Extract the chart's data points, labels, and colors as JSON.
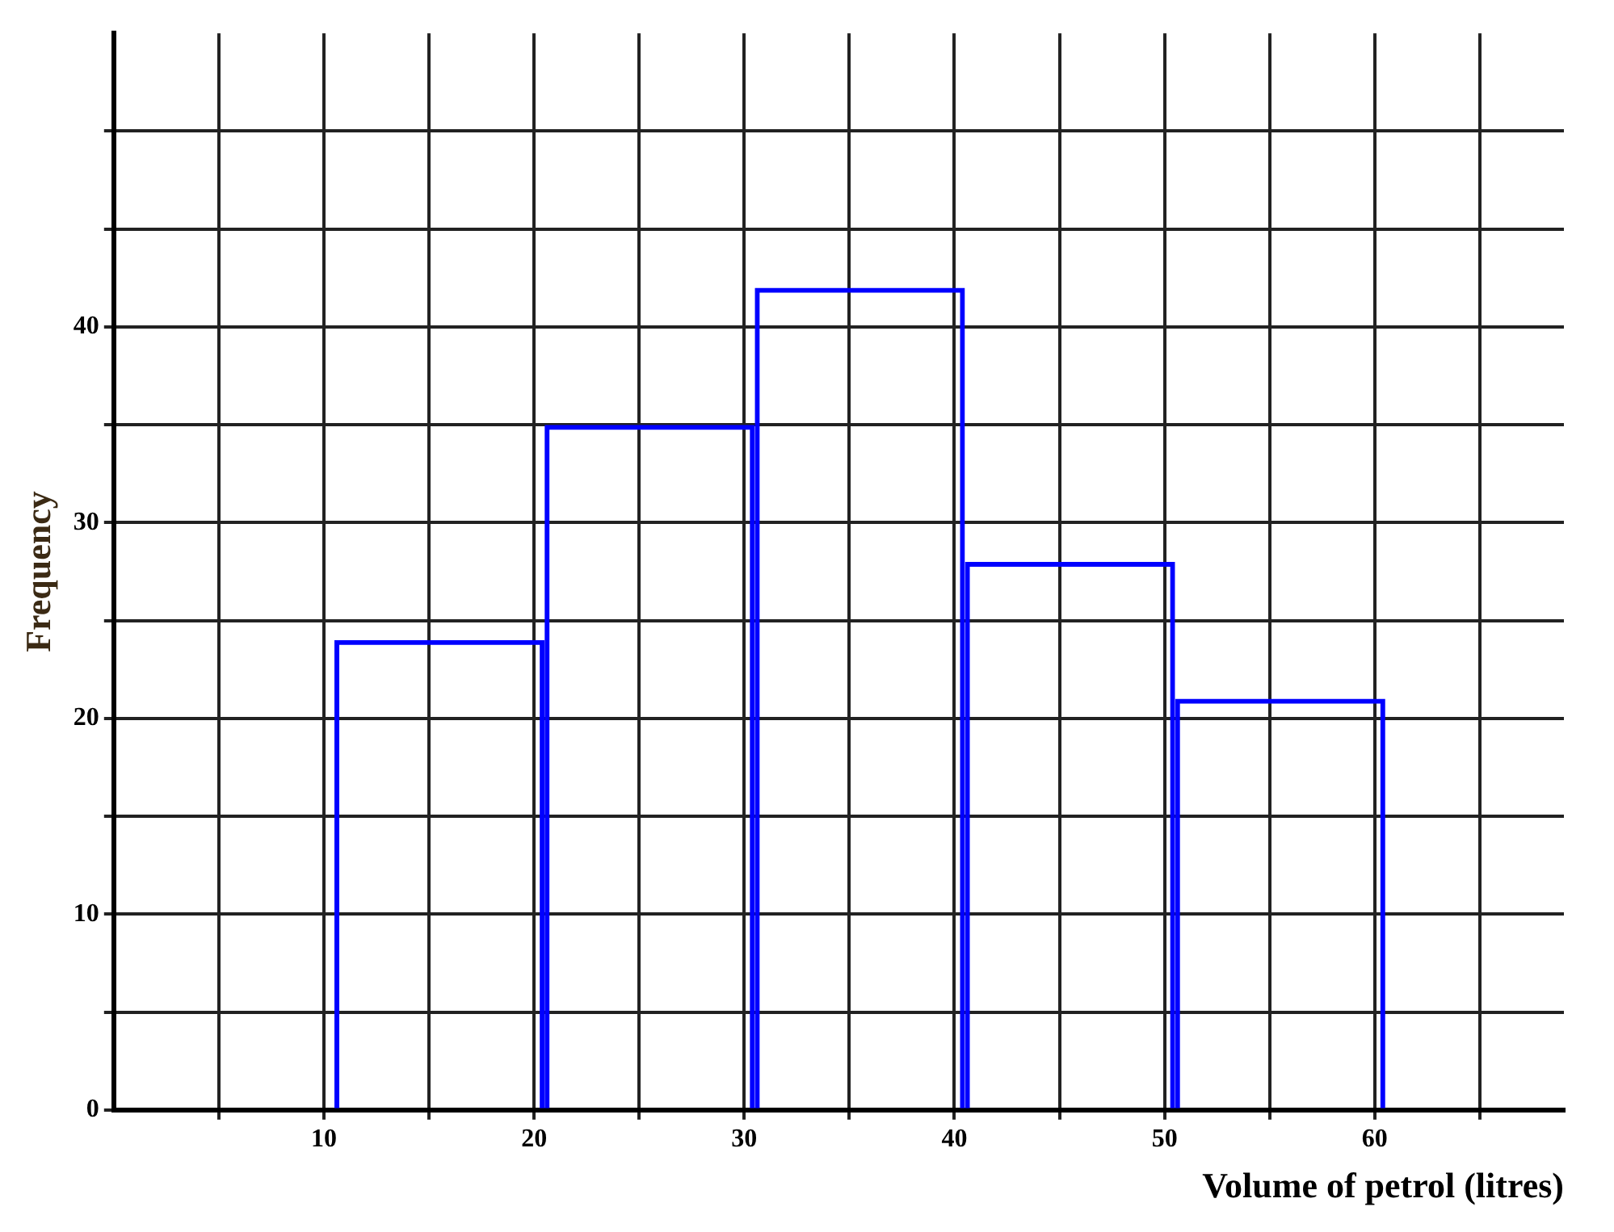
{
  "chart_data": {
    "type": "histogram",
    "xlabel": "Volume of petrol (litres)",
    "ylabel": "Frequency",
    "bins": [
      10.5,
      20.5,
      30.5,
      40.5,
      50.5,
      60.5
    ],
    "values": [
      24,
      35,
      42,
      28,
      21
    ],
    "color": "#0000ff",
    "xlim": [
      0,
      69
    ],
    "ylim": [
      0,
      55
    ],
    "xticks": [
      {
        "value": 5,
        "label": null
      },
      10,
      {
        "value": 15,
        "label": null
      },
      20,
      {
        "value": 25,
        "label": null
      },
      30,
      {
        "value": 35,
        "label": null
      },
      40,
      {
        "value": 45,
        "label": null
      },
      50,
      {
        "value": 55,
        "label": null
      },
      60,
      {
        "value": 65,
        "label": null
      }
    ],
    "yticks": [
      0,
      {
        "value": 5,
        "label": null
      },
      10,
      {
        "value": 15,
        "label": null
      },
      20,
      {
        "value": 25,
        "label": null
      },
      30,
      {
        "value": 35,
        "label": null
      },
      40,
      {
        "value": 45,
        "label": null
      },
      {
        "value": 50,
        "label": null
      }
    ],
    "grid": true
  }
}
